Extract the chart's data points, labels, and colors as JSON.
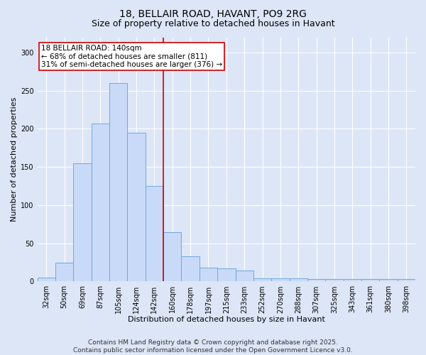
{
  "title1": "18, BELLAIR ROAD, HAVANT, PO9 2RG",
  "title2": "Size of property relative to detached houses in Havant",
  "xlabel": "Distribution of detached houses by size in Havant",
  "ylabel": "Number of detached properties",
  "categories": [
    "32sqm",
    "50sqm",
    "69sqm",
    "87sqm",
    "105sqm",
    "124sqm",
    "142sqm",
    "160sqm",
    "178sqm",
    "197sqm",
    "215sqm",
    "233sqm",
    "252sqm",
    "270sqm",
    "288sqm",
    "307sqm",
    "325sqm",
    "343sqm",
    "361sqm",
    "380sqm",
    "398sqm"
  ],
  "values": [
    5,
    25,
    155,
    207,
    260,
    195,
    125,
    65,
    33,
    18,
    17,
    14,
    4,
    4,
    4,
    3,
    3,
    3,
    3,
    3,
    3
  ],
  "bar_color": "#c9daf8",
  "bar_edge_color": "#6fa8dc",
  "highlight_index": 6,
  "highlight_line_color": "#cc0000",
  "annotation_text": "18 BELLAIR ROAD: 140sqm\n← 68% of detached houses are smaller (811)\n31% of semi-detached houses are larger (376) →",
  "annotation_box_color": "#ffffff",
  "annotation_box_edge_color": "#cc0000",
  "ylim": [
    0,
    320
  ],
  "yticks": [
    0,
    50,
    100,
    150,
    200,
    250,
    300
  ],
  "background_color": "#dce6f7",
  "footer_text": "Contains HM Land Registry data © Crown copyright and database right 2025.\nContains public sector information licensed under the Open Government Licence v3.0.",
  "title_fontsize": 10,
  "subtitle_fontsize": 9,
  "axis_label_fontsize": 8,
  "tick_fontsize": 7,
  "annotation_fontsize": 7.5,
  "footer_fontsize": 6.5
}
